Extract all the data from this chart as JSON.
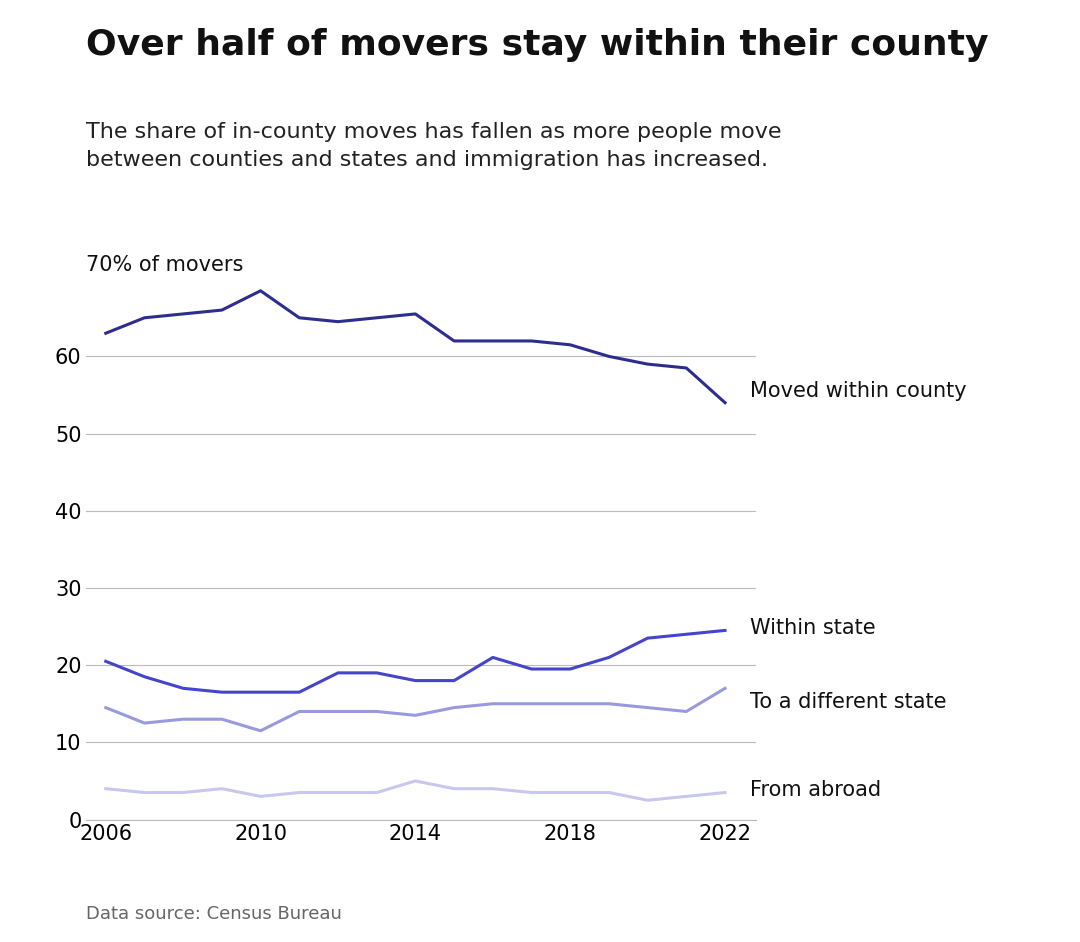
{
  "title": "Over half of movers stay within their county",
  "subtitle": "The share of in-county moves has fallen as more people move\nbetween counties and states and immigration has increased.",
  "ylabel": "70% of movers",
  "footnote": "Data source: Census Bureau",
  "years": [
    2006,
    2007,
    2008,
    2009,
    2010,
    2011,
    2012,
    2013,
    2014,
    2015,
    2016,
    2017,
    2018,
    2019,
    2020,
    2021,
    2022
  ],
  "within_county": [
    63,
    65,
    65.5,
    66,
    68.5,
    65,
    64.5,
    65,
    65.5,
    62,
    62,
    62,
    61.5,
    60,
    59,
    58.5,
    54
  ],
  "within_state": [
    20.5,
    18.5,
    17,
    16.5,
    16.5,
    16.5,
    19,
    19,
    18,
    18,
    21,
    19.5,
    19.5,
    21,
    23.5,
    24,
    24.5
  ],
  "diff_state": [
    14.5,
    12.5,
    13,
    13,
    11.5,
    14,
    14,
    14,
    13.5,
    14.5,
    15,
    15,
    15,
    15,
    14.5,
    14,
    17
  ],
  "from_abroad": [
    4,
    3.5,
    3.5,
    4,
    3,
    3.5,
    3.5,
    3.5,
    5,
    4,
    4,
    3.5,
    3.5,
    3.5,
    2.5,
    3,
    3.5
  ],
  "colors": {
    "within_county": "#2d2d8f",
    "within_state": "#4444cc",
    "diff_state": "#9999dd",
    "from_abroad": "#c8c8ee"
  },
  "ylim": [
    0,
    72
  ],
  "yticks": [
    0,
    10,
    20,
    30,
    40,
    50,
    60
  ],
  "xlim": [
    2005.5,
    2022.8
  ],
  "xticks": [
    2006,
    2010,
    2014,
    2018,
    2022
  ],
  "background_color": "#ffffff",
  "line_width": 2.2,
  "title_fontsize": 26,
  "subtitle_fontsize": 16,
  "tick_fontsize": 15,
  "label_fontsize": 15,
  "footnote_fontsize": 13,
  "grid_color": "#bbbbbb",
  "annotation_color": "#111111"
}
